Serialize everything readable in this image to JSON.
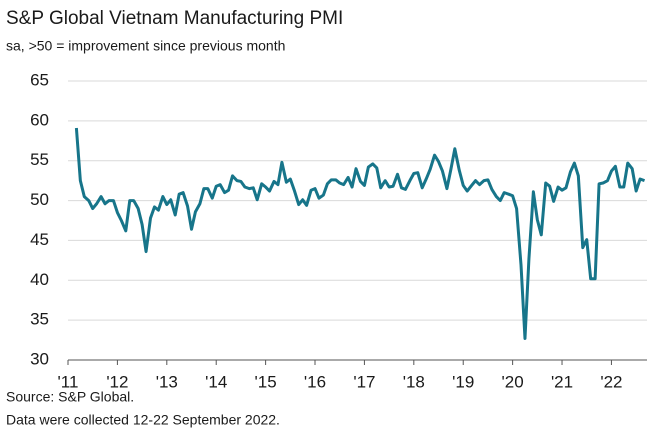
{
  "chart_data": {
    "type": "line",
    "title": "S&P Global Vietnam Manufacturing PMI",
    "subtitle": "sa, >50 = improvement since previous month",
    "source": "Source: S&P Global.",
    "note": "Data were collected 12-22 September 2022.",
    "color": "#17758a",
    "grid": true,
    "xlim": [
      2011,
      2022.72
    ],
    "xticks": [
      {
        "value": 2011,
        "label": "'11"
      },
      {
        "value": 2012,
        "label": "'12"
      },
      {
        "value": 2013,
        "label": "'13"
      },
      {
        "value": 2014,
        "label": "'14"
      },
      {
        "value": 2015,
        "label": "'15"
      },
      {
        "value": 2016,
        "label": "'16"
      },
      {
        "value": 2017,
        "label": "'17"
      },
      {
        "value": 2018,
        "label": "'18"
      },
      {
        "value": 2019,
        "label": "'19"
      },
      {
        "value": 2020,
        "label": "'20"
      },
      {
        "value": 2021,
        "label": "'21"
      },
      {
        "value": 2022,
        "label": "'22"
      }
    ],
    "ylim": [
      30,
      65
    ],
    "yticks": [
      30,
      35,
      40,
      45,
      50,
      55,
      60,
      65
    ],
    "x": [
      2011.17,
      2011.25,
      2011.33,
      2011.42,
      2011.5,
      2011.58,
      2011.67,
      2011.75,
      2011.83,
      2011.92,
      2012,
      2012.08,
      2012.17,
      2012.25,
      2012.33,
      2012.42,
      2012.5,
      2012.58,
      2012.67,
      2012.75,
      2012.83,
      2012.92,
      2013,
      2013.08,
      2013.17,
      2013.25,
      2013.33,
      2013.42,
      2013.5,
      2013.58,
      2013.67,
      2013.75,
      2013.83,
      2013.92,
      2014,
      2014.08,
      2014.17,
      2014.25,
      2014.33,
      2014.42,
      2014.5,
      2014.58,
      2014.67,
      2014.75,
      2014.83,
      2014.92,
      2015,
      2015.08,
      2015.17,
      2015.25,
      2015.33,
      2015.42,
      2015.5,
      2015.58,
      2015.67,
      2015.75,
      2015.83,
      2015.92,
      2016,
      2016.08,
      2016.17,
      2016.25,
      2016.33,
      2016.42,
      2016.5,
      2016.58,
      2016.67,
      2016.75,
      2016.83,
      2016.92,
      2017,
      2017.08,
      2017.17,
      2017.25,
      2017.33,
      2017.42,
      2017.5,
      2017.58,
      2017.67,
      2017.75,
      2017.83,
      2017.92,
      2018,
      2018.08,
      2018.17,
      2018.25,
      2018.33,
      2018.42,
      2018.5,
      2018.58,
      2018.67,
      2018.75,
      2018.83,
      2018.92,
      2019,
      2019.08,
      2019.17,
      2019.25,
      2019.33,
      2019.42,
      2019.5,
      2019.58,
      2019.67,
      2019.75,
      2019.83,
      2019.92,
      2020,
      2020.08,
      2020.17,
      2020.25,
      2020.33,
      2020.42,
      2020.5,
      2020.58,
      2020.67,
      2020.75,
      2020.83,
      2020.92,
      2021,
      2021.08,
      2021.17,
      2021.25,
      2021.33,
      2021.42,
      2021.5,
      2021.58,
      2021.67,
      2021.75,
      2021.83,
      2021.92,
      2022,
      2022.08,
      2022.17,
      2022.25,
      2022.33,
      2022.42,
      2022.5,
      2022.58,
      2022.67
    ],
    "values": [
      59.1,
      52.5,
      50.5,
      50.0,
      49.0,
      49.6,
      50.5,
      49.6,
      50.0,
      50.0,
      48.5,
      47.5,
      46.2,
      50.0,
      50.0,
      49.0,
      47.0,
      43.6,
      47.8,
      49.2,
      48.8,
      50.5,
      49.5,
      50.1,
      48.2,
      50.8,
      51.0,
      49.3,
      46.4,
      48.6,
      49.6,
      51.5,
      51.5,
      50.3,
      51.8,
      52.0,
      51.0,
      51.3,
      53.1,
      52.5,
      52.4,
      51.7,
      51.5,
      51.6,
      50.1,
      52.1,
      51.7,
      51.2,
      52.4,
      52.0,
      54.8,
      52.3,
      52.7,
      51.3,
      49.5,
      50.1,
      49.4,
      51.3,
      51.5,
      50.3,
      50.7,
      52.1,
      52.6,
      52.6,
      52.2,
      52.0,
      52.9,
      51.7,
      54.0,
      52.4,
      51.9,
      54.2,
      54.6,
      54.1,
      51.6,
      52.5,
      51.7,
      51.8,
      53.3,
      51.6,
      51.4,
      52.5,
      53.4,
      53.5,
      51.6,
      52.7,
      53.9,
      55.7,
      54.9,
      53.7,
      51.5,
      53.9,
      56.5,
      53.8,
      51.9,
      51.2,
      51.9,
      52.5,
      52.0,
      52.5,
      52.6,
      51.4,
      50.5,
      50.0,
      51.0,
      50.8,
      50.6,
      49.0,
      41.9,
      32.7,
      42.7,
      51.1,
      47.6,
      45.7,
      52.2,
      51.8,
      49.9,
      51.7,
      51.3,
      51.6,
      53.6,
      54.7,
      53.1,
      44.1,
      45.1,
      40.2,
      40.2,
      52.1,
      52.2,
      52.5,
      53.7,
      54.3,
      51.7,
      51.7,
      54.7,
      54.0,
      51.2,
      52.7,
      52.5
    ]
  }
}
